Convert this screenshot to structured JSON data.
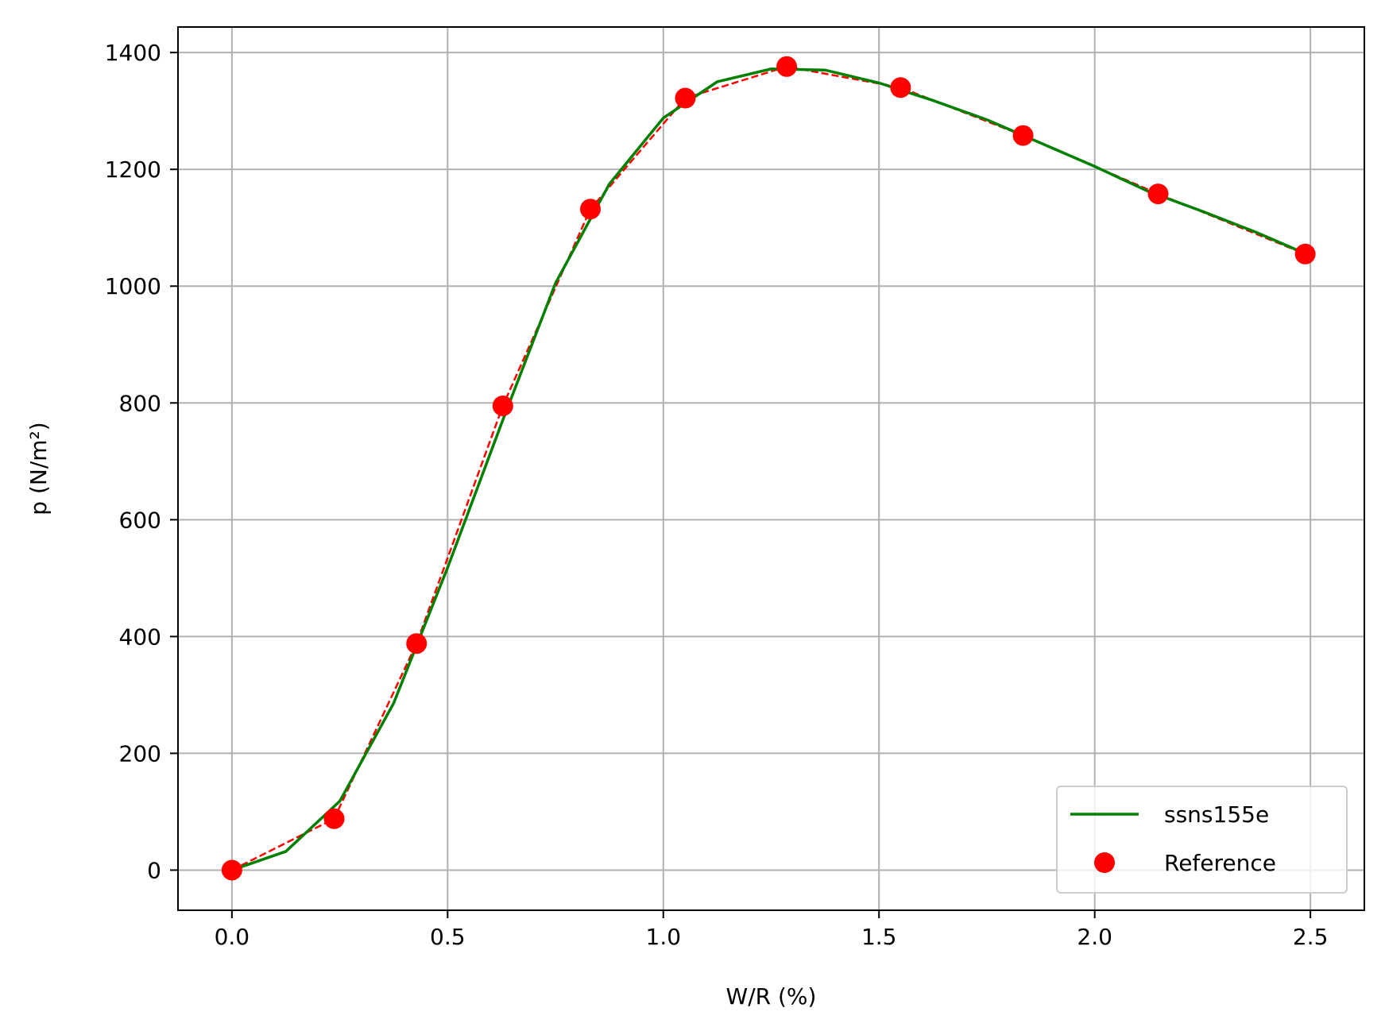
{
  "chart_data": {
    "type": "line",
    "title": "",
    "xlabel": "W/R (%)",
    "ylabel": "p (N/m²)",
    "xlim": [
      -0.125,
      2.625
    ],
    "ylim": [
      -68.75,
      1443.75
    ],
    "xticks": [
      "0.0",
      "0.5",
      "1.0",
      "1.5",
      "2.0",
      "2.5"
    ],
    "yticks": [
      "0",
      "200",
      "400",
      "600",
      "800",
      "1000",
      "1200",
      "1400"
    ],
    "grid": true,
    "legend_position": "lower-right",
    "series": [
      {
        "name": "ssns155e",
        "style": "solid-line",
        "color": "#008000",
        "x": [
          0.0,
          0.125,
          0.25,
          0.375,
          0.5,
          0.625,
          0.75,
          0.875,
          1.0,
          1.125,
          1.25,
          1.375,
          1.5,
          1.625,
          1.75,
          1.875,
          2.0,
          2.125,
          2.25,
          2.375,
          2.5
        ],
        "y": [
          0,
          32,
          118,
          286,
          518,
          765,
          1005,
          1175,
          1288,
          1350,
          1372,
          1370,
          1348,
          1318,
          1285,
          1245,
          1205,
          1162,
          1128,
          1092,
          1052
        ]
      },
      {
        "name": "Reference",
        "style": "markers-dashed",
        "color": "#ff0000",
        "x": [
          0.0,
          0.237,
          0.428,
          0.628,
          0.831,
          1.051,
          1.286,
          1.55,
          1.834,
          2.147,
          2.488
        ],
        "y": [
          0,
          88,
          388,
          795,
          1132,
          1322,
          1376,
          1340,
          1258,
          1158,
          1055
        ]
      }
    ]
  }
}
